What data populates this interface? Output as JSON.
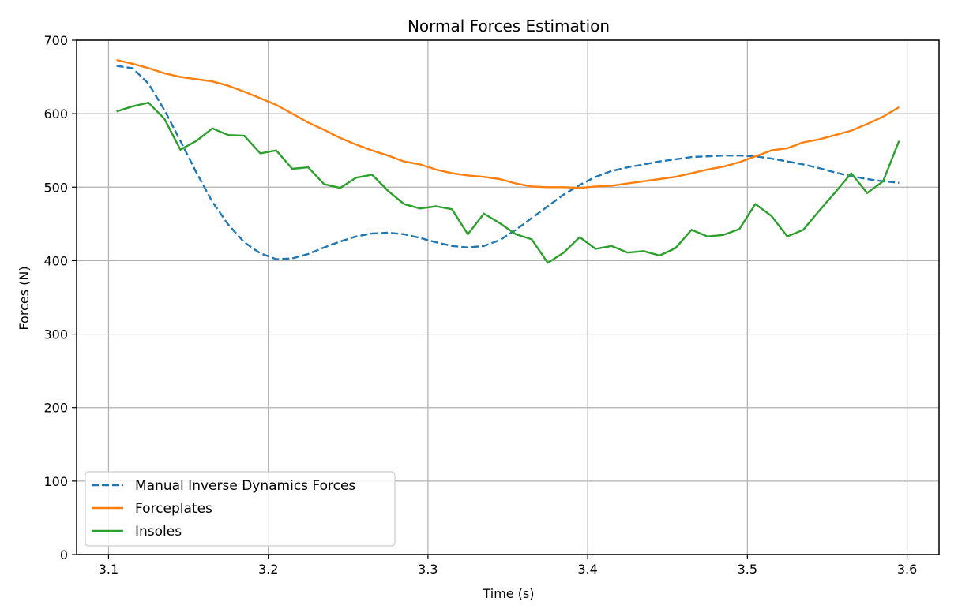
{
  "chart_data": {
    "type": "line",
    "title": "Normal Forces Estimation",
    "xlabel": "Time (s)",
    "ylabel": "Forces (N)",
    "xlim": [
      3.08,
      3.62
    ],
    "ylim": [
      0,
      700
    ],
    "xticks": [
      3.1,
      3.2,
      3.3,
      3.4,
      3.5,
      3.6
    ],
    "xtick_labels": [
      "3.1",
      "3.2",
      "3.3",
      "3.4",
      "3.5",
      "3.6"
    ],
    "yticks": [
      0,
      100,
      200,
      300,
      400,
      500,
      600,
      700
    ],
    "ytick_labels": [
      "0",
      "100",
      "200",
      "300",
      "400",
      "500",
      "600",
      "700"
    ],
    "grid": true,
    "legend_position": "lower-left",
    "series": [
      {
        "name": "Manual Inverse Dynamics Forces",
        "color": "#1f77b4",
        "style": "dashed",
        "x": [
          3.105,
          3.115,
          3.125,
          3.135,
          3.145,
          3.155,
          3.165,
          3.175,
          3.185,
          3.195,
          3.205,
          3.215,
          3.225,
          3.235,
          3.245,
          3.255,
          3.265,
          3.275,
          3.285,
          3.295,
          3.305,
          3.315,
          3.325,
          3.335,
          3.345,
          3.355,
          3.365,
          3.375,
          3.385,
          3.395,
          3.405,
          3.415,
          3.425,
          3.435,
          3.445,
          3.455,
          3.465,
          3.475,
          3.485,
          3.495,
          3.505,
          3.515,
          3.525,
          3.535,
          3.545,
          3.555,
          3.565,
          3.575,
          3.585,
          3.595
        ],
        "y": [
          665,
          662,
          641,
          605,
          563,
          520,
          480,
          449,
          425,
          410,
          402,
          403,
          409,
          418,
          426,
          433,
          437,
          438,
          436,
          431,
          425,
          420,
          418,
          420,
          428,
          442,
          458,
          474,
          490,
          503,
          514,
          522,
          527,
          531,
          535,
          538,
          541,
          542,
          543,
          543,
          542,
          539,
          535,
          531,
          526,
          520,
          515,
          511,
          508,
          506
        ]
      },
      {
        "name": "Forceplates",
        "color": "#ff7f0e",
        "style": "solid",
        "x": [
          3.105,
          3.115,
          3.125,
          3.135,
          3.145,
          3.155,
          3.165,
          3.175,
          3.185,
          3.195,
          3.205,
          3.215,
          3.225,
          3.235,
          3.245,
          3.255,
          3.265,
          3.275,
          3.285,
          3.295,
          3.305,
          3.315,
          3.325,
          3.335,
          3.345,
          3.355,
          3.365,
          3.375,
          3.385,
          3.395,
          3.405,
          3.415,
          3.425,
          3.435,
          3.445,
          3.455,
          3.465,
          3.475,
          3.485,
          3.495,
          3.505,
          3.515,
          3.525,
          3.535,
          3.545,
          3.555,
          3.565,
          3.575,
          3.585,
          3.595
        ],
        "y": [
          673,
          668,
          662,
          655,
          650,
          647,
          644,
          638,
          630,
          621,
          612,
          600,
          588,
          578,
          567,
          558,
          550,
          543,
          535,
          531,
          524,
          519,
          516,
          514,
          511,
          505,
          501,
          500,
          500,
          499,
          501,
          502,
          505,
          508,
          511,
          514,
          519,
          524,
          528,
          534,
          542,
          550,
          553,
          561,
          565,
          571,
          577,
          586,
          596,
          609
        ]
      },
      {
        "name": "Insoles",
        "color": "#2ca02c",
        "style": "solid",
        "x": [
          3.105,
          3.115,
          3.125,
          3.135,
          3.145,
          3.155,
          3.165,
          3.175,
          3.185,
          3.195,
          3.205,
          3.215,
          3.225,
          3.235,
          3.245,
          3.255,
          3.265,
          3.275,
          3.285,
          3.295,
          3.305,
          3.315,
          3.325,
          3.335,
          3.345,
          3.355,
          3.365,
          3.375,
          3.385,
          3.395,
          3.405,
          3.415,
          3.425,
          3.435,
          3.445,
          3.455,
          3.465,
          3.475,
          3.485,
          3.495,
          3.505,
          3.515,
          3.525,
          3.535,
          3.545,
          3.555,
          3.565,
          3.575,
          3.585,
          3.595
        ],
        "y": [
          603,
          610,
          615,
          593,
          551,
          563,
          580,
          571,
          570,
          546,
          550,
          525,
          527,
          504,
          499,
          513,
          517,
          495,
          477,
          471,
          474,
          470,
          436,
          464,
          451,
          436,
          429,
          397,
          411,
          432,
          416,
          420,
          411,
          413,
          407,
          417,
          442,
          433,
          435,
          443,
          477,
          461,
          433,
          442,
          468,
          493,
          519,
          492,
          508,
          563
        ]
      }
    ]
  }
}
